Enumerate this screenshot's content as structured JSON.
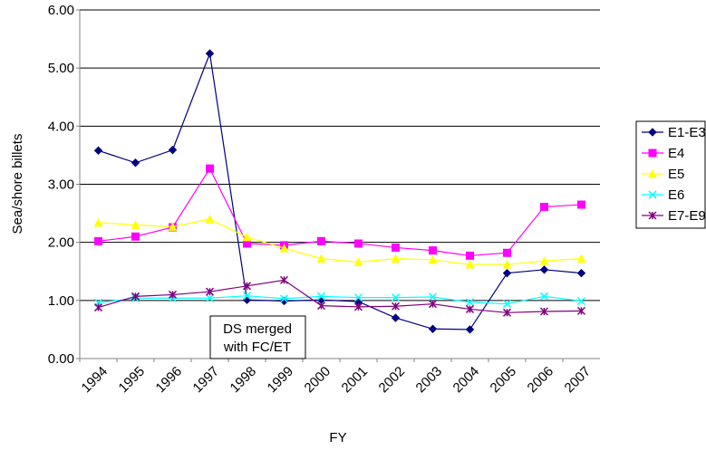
{
  "chart_data": {
    "type": "line",
    "y_label": "Sea/shore billets",
    "x_label": "FY",
    "categories": [
      "1994",
      "1995",
      "1996",
      "1997",
      "1998",
      "1999",
      "2000",
      "2001",
      "2002",
      "2003",
      "2004",
      "2005",
      "2006",
      "2007"
    ],
    "ylim": [
      0,
      6
    ],
    "yticks": [
      {
        "value": 0,
        "label": "0.00"
      },
      {
        "value": 1,
        "label": "1.00"
      },
      {
        "value": 2,
        "label": "2.00"
      },
      {
        "value": 3,
        "label": "3.00"
      },
      {
        "value": 4,
        "label": "4.00"
      },
      {
        "value": 5,
        "label": "5.00"
      },
      {
        "value": 6,
        "label": "6.00"
      }
    ],
    "grid": true,
    "legend": "right",
    "annotation": [
      "DS merged",
      "with FC/ET"
    ],
    "series": [
      {
        "name": "E1-E3",
        "color": "#000080",
        "marker": "diamond",
        "values": [
          3.58,
          3.37,
          3.59,
          5.25,
          1.01,
          0.99,
          1.01,
          0.98,
          0.7,
          0.51,
          0.5,
          1.47,
          1.53,
          1.47
        ]
      },
      {
        "name": "E4",
        "color": "#ff00ff",
        "marker": "square",
        "values": [
          2.02,
          2.1,
          2.26,
          3.27,
          1.98,
          1.95,
          2.02,
          1.98,
          1.91,
          1.86,
          1.77,
          1.82,
          2.61,
          2.65
        ]
      },
      {
        "name": "E5",
        "color": "#ffff00",
        "marker": "triangle",
        "values": [
          2.34,
          2.3,
          2.27,
          2.4,
          2.09,
          1.9,
          1.72,
          1.66,
          1.72,
          1.7,
          1.62,
          1.62,
          1.68,
          1.72
        ]
      },
      {
        "name": "E6",
        "color": "#00ffff",
        "marker": "x",
        "values": [
          0.96,
          1.04,
          1.04,
          1.04,
          1.08,
          1.03,
          1.07,
          1.05,
          1.05,
          1.06,
          0.97,
          0.94,
          1.07,
          0.99
        ]
      },
      {
        "name": "E7-E9",
        "color": "#800080",
        "marker": "star",
        "values": [
          0.88,
          1.07,
          1.1,
          1.15,
          1.25,
          1.35,
          0.91,
          0.89,
          0.9,
          0.94,
          0.85,
          0.79,
          0.81,
          0.82
        ]
      }
    ]
  }
}
